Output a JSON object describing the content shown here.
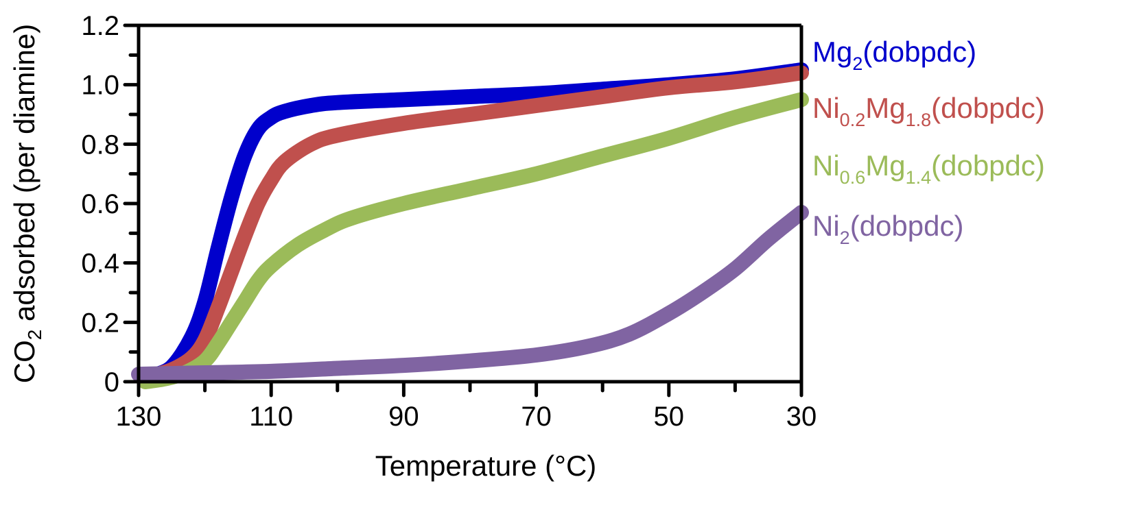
{
  "chart_data": {
    "type": "line",
    "title": "",
    "xlabel": "Temperature (°C)",
    "ylabel": {
      "main": "CO",
      "sub": "2",
      "rest": " adsorbed (per diamine)"
    },
    "xlim": [
      130,
      30
    ],
    "ylim": [
      0,
      1.2
    ],
    "x_reversed": true,
    "xticks": [
      130,
      110,
      90,
      70,
      50,
      30
    ],
    "xtick_labels": [
      "130",
      "110",
      "90",
      "70",
      "50",
      "30"
    ],
    "x_minor_ticks": [
      120,
      100,
      80,
      60,
      40
    ],
    "yticks": [
      0,
      0.2,
      0.4,
      0.6,
      0.8,
      1.0,
      1.2
    ],
    "ytick_labels": [
      "0",
      "0.2",
      "0.4",
      "0.6",
      "0.8",
      "1.0",
      "1.2"
    ],
    "y_minor_ticks": [
      0.1,
      0.3,
      0.5,
      0.7,
      0.9,
      1.1
    ],
    "grid": false,
    "legend_placement": "right-outside",
    "series": [
      {
        "name": "Mg2(dobpdc)",
        "label_parts": [
          [
            "Mg",
            "n"
          ],
          [
            "2",
            "sub"
          ],
          [
            "(dobpdc)",
            "n"
          ]
        ],
        "color": "#0000cc",
        "x": [
          128,
          125,
          122,
          120,
          118,
          116,
          114,
          112,
          110,
          108,
          104,
          100,
          90,
          80,
          70,
          60,
          50,
          40,
          30
        ],
        "y": [
          0.02,
          0.05,
          0.15,
          0.27,
          0.45,
          0.62,
          0.76,
          0.85,
          0.89,
          0.91,
          0.93,
          0.94,
          0.95,
          0.96,
          0.97,
          0.985,
          1.0,
          1.02,
          1.05
        ]
      },
      {
        "name": "Ni0.2Mg1.8(dobpdc)",
        "label_parts": [
          [
            "Ni",
            "n"
          ],
          [
            "0.2",
            "sub"
          ],
          [
            "Mg",
            "n"
          ],
          [
            "1.8",
            "sub"
          ],
          [
            "(dobpdc)",
            "n"
          ]
        ],
        "color": "#c0504d",
        "x": [
          128,
          125,
          122,
          120,
          118,
          116,
          114,
          112,
          110,
          108,
          104,
          100,
          90,
          80,
          70,
          60,
          50,
          40,
          30
        ],
        "y": [
          0.02,
          0.04,
          0.08,
          0.14,
          0.25,
          0.37,
          0.49,
          0.6,
          0.68,
          0.74,
          0.8,
          0.83,
          0.87,
          0.9,
          0.93,
          0.96,
          0.99,
          1.01,
          1.04
        ]
      },
      {
        "name": "Ni0.6Mg1.4(dobpdc)",
        "label_parts": [
          [
            "Ni",
            "n"
          ],
          [
            "0.6",
            "sub"
          ],
          [
            "Mg",
            "n"
          ],
          [
            "1.4",
            "sub"
          ],
          [
            "(dobpdc)",
            "n"
          ]
        ],
        "color": "#9bbb59",
        "x": [
          129,
          126,
          123,
          120,
          118,
          116,
          114,
          112,
          110,
          106,
          102,
          98,
          90,
          80,
          70,
          60,
          50,
          40,
          30
        ],
        "y": [
          0.0,
          0.01,
          0.03,
          0.07,
          0.13,
          0.2,
          0.27,
          0.34,
          0.39,
          0.46,
          0.51,
          0.55,
          0.6,
          0.65,
          0.7,
          0.76,
          0.82,
          0.89,
          0.95
        ]
      },
      {
        "name": "Ni2(dobpdc)",
        "label_parts": [
          [
            "Ni",
            "n"
          ],
          [
            "2",
            "sub"
          ],
          [
            "(dobpdc)",
            "n"
          ]
        ],
        "color": "#8064a2",
        "x": [
          130,
          120,
          110,
          100,
          90,
          80,
          70,
          62,
          56,
          50,
          45,
          40,
          35,
          30
        ],
        "y": [
          0.025,
          0.03,
          0.035,
          0.045,
          0.055,
          0.07,
          0.09,
          0.12,
          0.16,
          0.23,
          0.3,
          0.38,
          0.48,
          0.57
        ]
      }
    ]
  }
}
